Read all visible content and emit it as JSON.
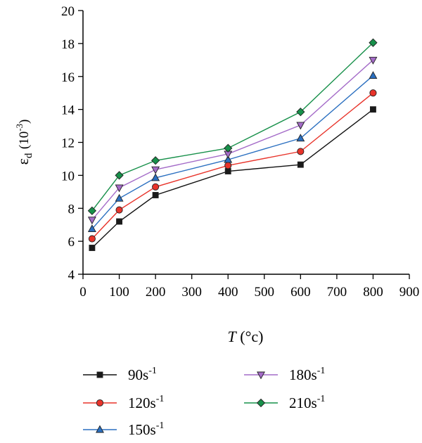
{
  "chart_data": {
    "type": "line",
    "xlabel": "T",
    "xlabel_unit": "(°c)",
    "ylabel": "ε",
    "ylabel_sub": "d",
    "ylabel_unit_base": "(10",
    "ylabel_unit_exp": "-3",
    "ylabel_unit_close": ")",
    "xlim": [
      0,
      900
    ],
    "ylim": [
      4,
      20
    ],
    "xticks": [
      0,
      100,
      200,
      300,
      400,
      500,
      600,
      700,
      800,
      900
    ],
    "yticks": [
      4,
      6,
      8,
      10,
      12,
      14,
      16,
      18,
      20
    ],
    "grid": false,
    "legend_position": "bottom",
    "x": [
      25,
      100,
      200,
      400,
      600,
      800
    ],
    "series": [
      {
        "name_base": "90s",
        "name_exp": "-1",
        "marker": "square",
        "color": "#111111",
        "marker_fill": "#1a1a1a",
        "values": [
          5.6,
          7.2,
          8.8,
          10.25,
          10.65,
          14.0
        ]
      },
      {
        "name_base": "120s",
        "name_exp": "-1",
        "marker": "circle",
        "color": "#e8332a",
        "marker_fill": "#e8332a",
        "values": [
          6.15,
          7.9,
          9.3,
          10.6,
          11.45,
          15.0
        ]
      },
      {
        "name_base": "150s",
        "name_exp": "-1",
        "marker": "triangle-up",
        "color": "#2a6fc0",
        "marker_fill": "#2a6fc0",
        "values": [
          6.75,
          8.6,
          9.85,
          10.95,
          12.25,
          16.05
        ]
      },
      {
        "name_base": "180s",
        "name_exp": "-1",
        "marker": "triangle-down",
        "color": "#a46bc8",
        "marker_fill": "#a46bc8",
        "values": [
          7.3,
          9.25,
          10.35,
          11.3,
          13.05,
          17.0
        ]
      },
      {
        "name_base": "210s",
        "name_exp": "-1",
        "marker": "diamond",
        "color": "#17904a",
        "marker_fill": "#17904a",
        "values": [
          7.85,
          10.0,
          10.9,
          11.65,
          13.85,
          18.05
        ]
      }
    ]
  }
}
